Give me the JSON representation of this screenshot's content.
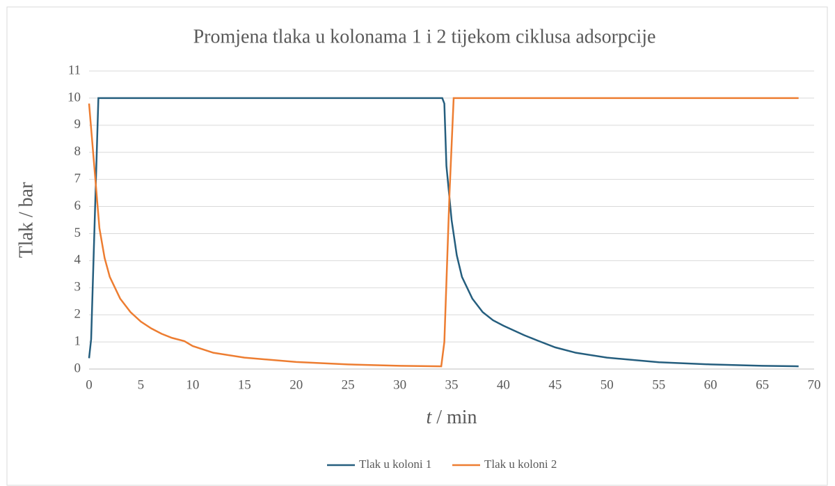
{
  "chart_data": {
    "type": "line",
    "title": "Promjena tlaka u kolonama 1 i 2 tijekom ciklusa adsorpcije",
    "xlabel": "t / min",
    "ylabel": "Tlak / bar",
    "xlim": [
      0,
      70
    ],
    "xticks": [
      0,
      5,
      10,
      15,
      20,
      25,
      30,
      35,
      40,
      45,
      50,
      55,
      60,
      65,
      70
    ],
    "ylim": [
      0,
      11
    ],
    "yticks": [
      0,
      1,
      2,
      3,
      4,
      5,
      6,
      7,
      8,
      9,
      10,
      11
    ],
    "grid": true,
    "legend": "bottom",
    "series": [
      {
        "name": "Tlak u koloni 1",
        "color": "#255e7e",
        "x": [
          0,
          0.2,
          0.9,
          34.1,
          34.3,
          34.5,
          35,
          35.5,
          36,
          37,
          38,
          39,
          40,
          42,
          43.3,
          45,
          47,
          50,
          55,
          60,
          65,
          68.5
        ],
        "values": [
          0.4,
          1.1,
          10,
          10,
          9.8,
          7.5,
          5.5,
          4.2,
          3.4,
          2.6,
          2.1,
          1.8,
          1.6,
          1.25,
          1.05,
          0.8,
          0.6,
          0.42,
          0.25,
          0.17,
          0.12,
          0.1
        ]
      },
      {
        "name": "Tlak u koloni 2",
        "color": "#ed7d31",
        "x": [
          0,
          0.5,
          1,
          1.5,
          2,
          3,
          4,
          5,
          6,
          7,
          8,
          9.2,
          10,
          12,
          15,
          20,
          25,
          30,
          34,
          34.3,
          34.8,
          35.2,
          68.5
        ],
        "values": [
          9.8,
          7.5,
          5.2,
          4.1,
          3.4,
          2.6,
          2.1,
          1.75,
          1.5,
          1.3,
          1.15,
          1.03,
          0.85,
          0.6,
          0.42,
          0.26,
          0.17,
          0.12,
          0.1,
          1,
          6.5,
          10,
          10
        ]
      }
    ]
  }
}
